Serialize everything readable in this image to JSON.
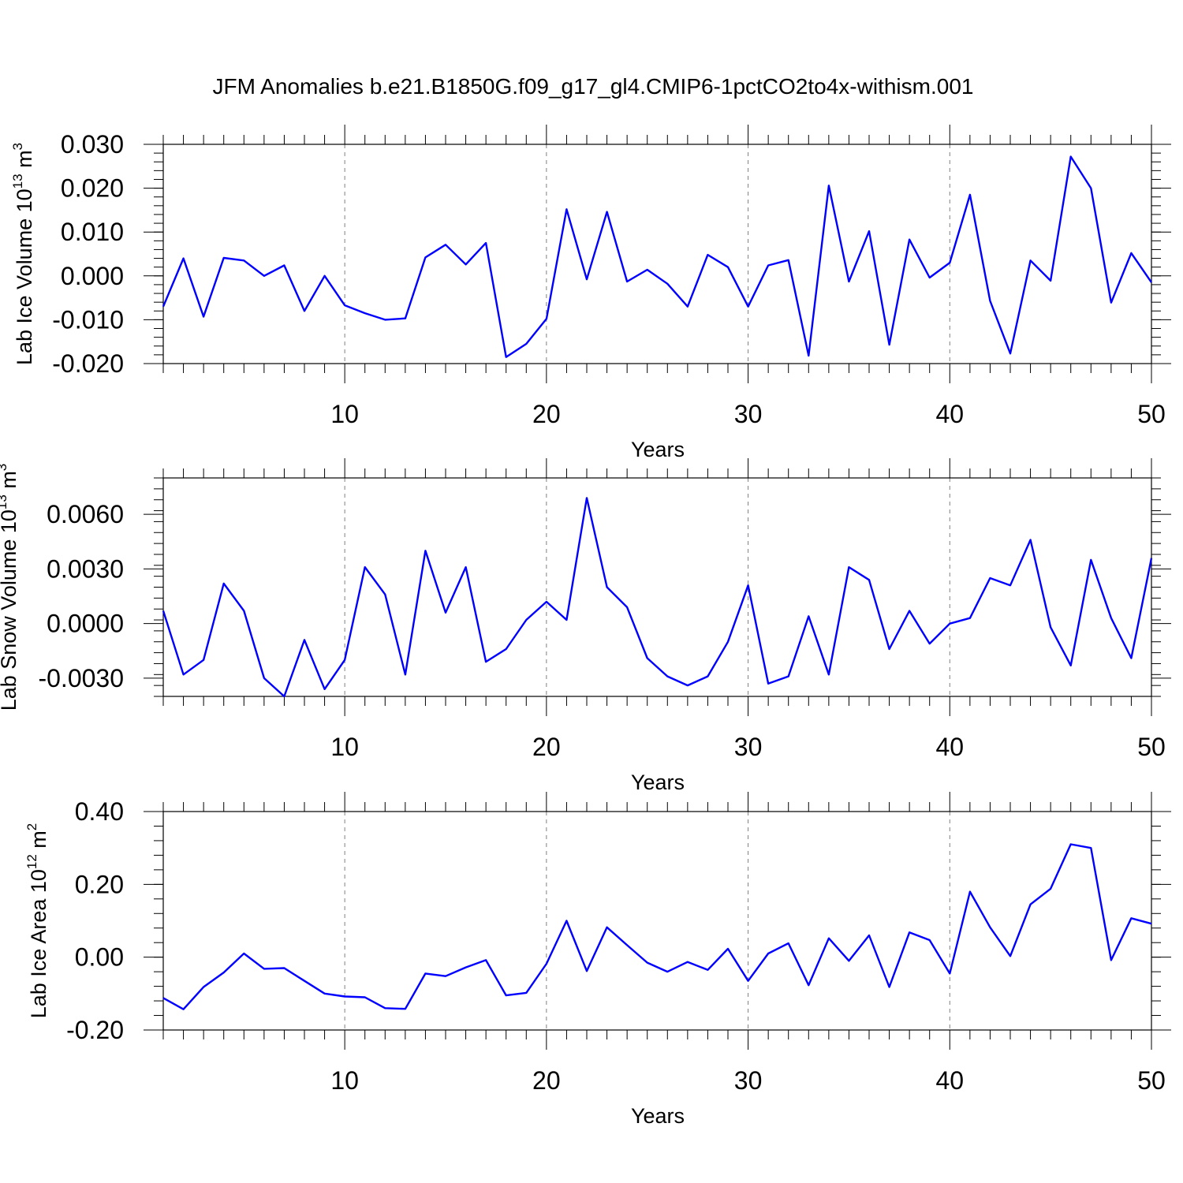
{
  "title": "JFM Anomalies b.e21.B1850G.f09_g17_gl4.CMIP6-1pctCO2to4x-withism.001",
  "line_color": "#0000ff",
  "chart_data": [
    {
      "type": "line",
      "name": "ice-volume",
      "ylabel_main": "Lab Ice Volume 10",
      "ylabel_exp": "13",
      "ylabel_unit": " m",
      "ylabel_unit_exp": "3",
      "xlabel": "Years",
      "xlim": [
        1,
        50
      ],
      "ylim": [
        -0.02,
        0.03
      ],
      "xticks": [
        10,
        20,
        30,
        40,
        50
      ],
      "xtick_labels": [
        "10",
        "20",
        "30",
        "40",
        "50"
      ],
      "yticks": [
        -0.02,
        -0.01,
        0.0,
        0.01,
        0.02,
        0.03
      ],
      "ytick_labels": [
        "-0.020",
        "-0.010",
        "0.000",
        "0.010",
        "0.020",
        "0.030"
      ],
      "grid_x": [
        10,
        20,
        30,
        40
      ],
      "x": [
        1,
        2,
        3,
        4,
        5,
        6,
        7,
        8,
        9,
        10,
        11,
        12,
        13,
        14,
        15,
        16,
        17,
        18,
        19,
        20,
        21,
        22,
        23,
        24,
        25,
        26,
        27,
        28,
        29,
        30,
        31,
        32,
        33,
        34,
        35,
        36,
        37,
        38,
        39,
        40,
        41,
        42,
        43,
        44,
        45,
        46,
        47,
        48,
        49,
        50
      ],
      "y": [
        -0.007,
        0.004,
        -0.0093,
        0.0041,
        0.0035,
        0.0,
        0.0024,
        -0.008,
        0.0,
        -0.0067,
        -0.0085,
        -0.01,
        -0.0097,
        0.0042,
        0.0071,
        0.0026,
        0.0075,
        -0.0185,
        -0.0155,
        -0.0098,
        0.0152,
        -0.0008,
        0.0146,
        -0.0013,
        0.0014,
        -0.0018,
        -0.007,
        0.0048,
        0.002,
        -0.007,
        0.0024,
        0.0036,
        -0.0182,
        0.0206,
        -0.0013,
        0.0102,
        -0.0157,
        0.0083,
        -0.0004,
        0.003,
        0.0185,
        -0.0057,
        -0.0177,
        0.0035,
        -0.0011,
        0.0272,
        0.02,
        -0.0061,
        0.0052,
        -0.0015
      ]
    },
    {
      "type": "line",
      "name": "snow-volume",
      "ylabel_main": "Lab Snow Volume 10",
      "ylabel_exp": "13",
      "ylabel_unit": " m",
      "ylabel_unit_exp": "3",
      "xlabel": "Years",
      "xlim": [
        1,
        50
      ],
      "ylim": [
        -0.004,
        0.008
      ],
      "xticks": [
        10,
        20,
        30,
        40,
        50
      ],
      "xtick_labels": [
        "10",
        "20",
        "30",
        "40",
        "50"
      ],
      "yticks": [
        -0.003,
        0.0,
        0.003,
        0.006
      ],
      "ytick_labels": [
        "-0.0030",
        "0.0000",
        "0.0030",
        "0.0060"
      ],
      "grid_x": [
        10,
        20,
        30,
        40
      ],
      "x": [
        1,
        2,
        3,
        4,
        5,
        6,
        7,
        8,
        9,
        10,
        11,
        12,
        13,
        14,
        15,
        16,
        17,
        18,
        19,
        20,
        21,
        22,
        23,
        24,
        25,
        26,
        27,
        28,
        29,
        30,
        31,
        32,
        33,
        34,
        35,
        36,
        37,
        38,
        39,
        40,
        41,
        42,
        43,
        44,
        45,
        46,
        47,
        48,
        49,
        50
      ],
      "y": [
        0.0007,
        -0.0028,
        -0.002,
        0.0022,
        0.0007,
        -0.003,
        -0.004,
        -0.0009,
        -0.0036,
        -0.002,
        0.0031,
        0.0016,
        -0.0028,
        0.004,
        0.0006,
        0.0031,
        -0.0021,
        -0.0014,
        0.0002,
        0.0012,
        0.0002,
        0.0069,
        0.002,
        0.0009,
        -0.0019,
        -0.0029,
        -0.0034,
        -0.0029,
        -0.001,
        0.0021,
        -0.0033,
        -0.0029,
        0.0004,
        -0.0028,
        0.0031,
        0.0024,
        -0.0014,
        0.0007,
        -0.0011,
        0.0,
        0.0003,
        0.0025,
        0.0021,
        0.0046,
        -0.0002,
        -0.0023,
        0.0035,
        0.0003,
        -0.0019,
        0.0036
      ]
    },
    {
      "type": "line",
      "name": "ice-area",
      "ylabel_main": "Lab Ice Area 10",
      "ylabel_exp": "12",
      "ylabel_unit": " m",
      "ylabel_unit_exp": "2",
      "xlabel": "Years",
      "xlim": [
        1,
        50
      ],
      "ylim": [
        -0.2,
        0.4
      ],
      "xticks": [
        10,
        20,
        30,
        40,
        50
      ],
      "xtick_labels": [
        "10",
        "20",
        "30",
        "40",
        "50"
      ],
      "yticks": [
        -0.2,
        0.0,
        0.2,
        0.4
      ],
      "ytick_labels": [
        "-0.20",
        "0.00",
        "0.20",
        "0.40"
      ],
      "grid_x": [
        10,
        20,
        30,
        40
      ],
      "x": [
        1,
        2,
        3,
        4,
        5,
        6,
        7,
        8,
        9,
        10,
        11,
        12,
        13,
        14,
        15,
        16,
        17,
        18,
        19,
        20,
        21,
        22,
        23,
        24,
        25,
        26,
        27,
        28,
        29,
        30,
        31,
        32,
        33,
        34,
        35,
        36,
        37,
        38,
        39,
        40,
        41,
        42,
        43,
        44,
        45,
        46,
        47,
        48,
        49,
        50
      ],
      "y": [
        -0.112,
        -0.143,
        -0.082,
        -0.042,
        0.01,
        -0.032,
        -0.03,
        -0.065,
        -0.1,
        -0.108,
        -0.11,
        -0.14,
        -0.142,
        -0.045,
        -0.052,
        -0.028,
        -0.008,
        -0.105,
        -0.098,
        -0.018,
        0.1,
        -0.038,
        0.082,
        0.033,
        -0.015,
        -0.04,
        -0.013,
        -0.035,
        0.023,
        -0.065,
        0.01,
        0.038,
        -0.077,
        0.052,
        -0.01,
        0.06,
        -0.082,
        0.068,
        0.047,
        -0.045,
        0.18,
        0.082,
        0.003,
        0.145,
        0.188,
        0.31,
        0.3,
        -0.008,
        0.107,
        0.092
      ]
    }
  ]
}
